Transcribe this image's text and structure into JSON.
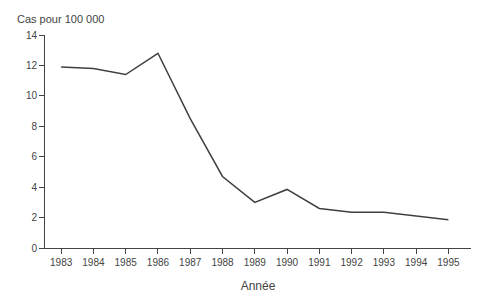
{
  "chart_data": {
    "type": "line",
    "x": [
      1983,
      1984,
      1985,
      1986,
      1987,
      1988,
      1989,
      1990,
      1991,
      1992,
      1993,
      1994,
      1995
    ],
    "values": [
      11.9,
      11.8,
      11.4,
      12.8,
      8.5,
      4.7,
      3.0,
      3.85,
      2.6,
      2.35,
      2.35,
      2.1,
      1.85
    ],
    "color": "#404040",
    "xlabel": "Année",
    "ylabel": "Cas pour 100 000",
    "xlim": [
      1982.5,
      1995.7
    ],
    "xticks": [
      1983,
      1984,
      1985,
      1986,
      1987,
      1988,
      1989,
      1990,
      1991,
      1992,
      1993,
      1994,
      1995
    ],
    "ylim": [
      0,
      14
    ],
    "yticks": [
      0,
      2,
      4,
      6,
      8,
      10,
      12,
      14
    ],
    "grid": false
  }
}
